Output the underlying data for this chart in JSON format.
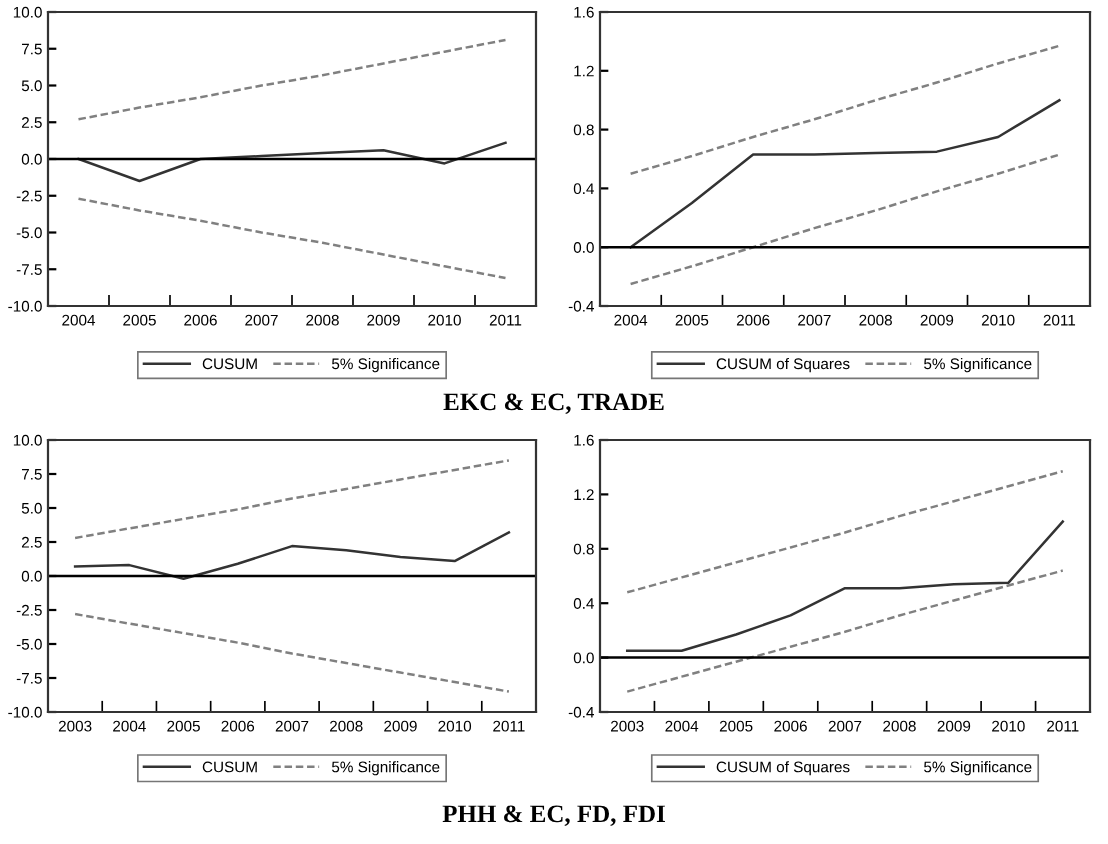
{
  "chart_data": [
    {
      "type": "line",
      "categories": [
        "2004",
        "2005",
        "2006",
        "2007",
        "2008",
        "2009",
        "2010",
        "2011"
      ],
      "ylim": [
        -10,
        10
      ],
      "yticks": [
        {
          "value": -10,
          "label": "-10.0"
        },
        {
          "value": -7.5,
          "label": "-7.5"
        },
        {
          "value": -5,
          "label": "-5.0"
        },
        {
          "value": -2.5,
          "label": "-2.5"
        },
        {
          "value": 0,
          "label": "0.0"
        },
        {
          "value": 2.5,
          "label": "2.5"
        },
        {
          "value": 5,
          "label": "5.0"
        },
        {
          "value": 7.5,
          "label": "7.5"
        },
        {
          "value": 10,
          "label": "10.0"
        }
      ],
      "legend": "bottom",
      "grid": false,
      "marker": "none",
      "ref_lines": [
        {
          "axis": "y",
          "value": 0,
          "color": "#000000",
          "line_style": "solid"
        }
      ],
      "annotations": [
        "EKC & EC, TRADE"
      ],
      "series": [
        {
          "name": "CUSUM",
          "color": "#333333",
          "line_style": "solid",
          "values": [
            0,
            -1.5,
            0,
            0.2,
            0.4,
            0.6,
            -0.3,
            1.1
          ]
        },
        {
          "name": "5% Significance",
          "color": "#808080",
          "line_style": "dashed",
          "values": [
            2.7,
            3.5,
            4.2,
            5.0,
            5.7,
            6.5,
            7.3,
            8.1
          ]
        },
        {
          "color": "#808080",
          "line_style": "dashed",
          "values": [
            -2.7,
            -3.5,
            -4.2,
            -5.0,
            -5.7,
            -6.5,
            -7.3,
            -8.1
          ]
        }
      ]
    },
    {
      "type": "line",
      "categories": [
        "2004",
        "2005",
        "2006",
        "2007",
        "2008",
        "2009",
        "2010",
        "2011"
      ],
      "ylim": [
        -0.4,
        1.6
      ],
      "yticks": [
        {
          "value": -0.4,
          "label": "-0.4"
        },
        {
          "value": 0,
          "label": "0.0"
        },
        {
          "value": 0.4,
          "label": "0.4"
        },
        {
          "value": 0.8,
          "label": "0.8"
        },
        {
          "value": 1.2,
          "label": "1.2"
        },
        {
          "value": 1.6,
          "label": "1.6"
        }
      ],
      "legend": "bottom",
      "grid": false,
      "marker": "none",
      "ref_lines": [
        {
          "axis": "y",
          "value": 0,
          "color": "#000000",
          "line_style": "solid"
        }
      ],
      "series": [
        {
          "name": "CUSUM of Squares",
          "color": "#333333",
          "line_style": "solid",
          "values": [
            0,
            0.3,
            0.63,
            0.63,
            0.64,
            0.65,
            0.75,
            1.0
          ]
        },
        {
          "name": "5% Significance",
          "color": "#808080",
          "line_style": "dashed",
          "values": [
            0.5,
            0.62,
            0.75,
            0.87,
            1.0,
            1.12,
            1.25,
            1.37
          ]
        },
        {
          "color": "#808080",
          "line_style": "dashed",
          "values": [
            -0.25,
            -0.13,
            0.0,
            0.13,
            0.25,
            0.38,
            0.5,
            0.63
          ]
        }
      ]
    },
    {
      "type": "line",
      "categories": [
        "2003",
        "2004",
        "2005",
        "2006",
        "2007",
        "2008",
        "2009",
        "2010",
        "2011"
      ],
      "ylim": [
        -10,
        10
      ],
      "yticks": [
        {
          "value": -10,
          "label": "-10.0"
        },
        {
          "value": -7.5,
          "label": "-7.5"
        },
        {
          "value": -5,
          "label": "-5.0"
        },
        {
          "value": -2.5,
          "label": "-2.5"
        },
        {
          "value": 0,
          "label": "0.0"
        },
        {
          "value": 2.5,
          "label": "2.5"
        },
        {
          "value": 5,
          "label": "5.0"
        },
        {
          "value": 7.5,
          "label": "7.5"
        },
        {
          "value": 10,
          "label": "10.0"
        }
      ],
      "legend": "bottom",
      "grid": false,
      "marker": "none",
      "ref_lines": [
        {
          "axis": "y",
          "value": 0,
          "color": "#000000",
          "line_style": "solid"
        }
      ],
      "annotations": [
        "PHH & EC, FD, FDI"
      ],
      "series": [
        {
          "name": "CUSUM",
          "color": "#333333",
          "line_style": "solid",
          "values": [
            0.7,
            0.8,
            -0.2,
            0.9,
            2.2,
            1.9,
            1.4,
            1.1,
            3.2
          ]
        },
        {
          "name": "5% Significance",
          "color": "#808080",
          "line_style": "dashed",
          "values": [
            2.8,
            3.5,
            4.2,
            4.9,
            5.7,
            6.4,
            7.1,
            7.8,
            8.5
          ]
        },
        {
          "color": "#808080",
          "line_style": "dashed",
          "values": [
            -2.8,
            -3.5,
            -4.2,
            -4.9,
            -5.7,
            -6.4,
            -7.1,
            -7.8,
            -8.5
          ]
        }
      ]
    },
    {
      "type": "line",
      "categories": [
        "2003",
        "2004",
        "2005",
        "2006",
        "2007",
        "2008",
        "2009",
        "2010",
        "2011"
      ],
      "ylim": [
        -0.4,
        1.6
      ],
      "yticks": [
        {
          "value": -0.4,
          "label": "-0.4"
        },
        {
          "value": 0,
          "label": "0.0"
        },
        {
          "value": 0.4,
          "label": "0.4"
        },
        {
          "value": 0.8,
          "label": "0.8"
        },
        {
          "value": 1.2,
          "label": "1.2"
        },
        {
          "value": 1.6,
          "label": "1.6"
        }
      ],
      "legend": "bottom",
      "grid": false,
      "marker": "none",
      "ref_lines": [
        {
          "axis": "y",
          "value": 0,
          "color": "#000000",
          "line_style": "solid"
        }
      ],
      "series": [
        {
          "name": "CUSUM of Squares",
          "color": "#333333",
          "line_style": "solid",
          "values": [
            0.05,
            0.05,
            0.17,
            0.31,
            0.51,
            0.51,
            0.54,
            0.55,
            1.0
          ]
        },
        {
          "name": "5% Significance",
          "color": "#808080",
          "line_style": "dashed",
          "values": [
            0.48,
            0.59,
            0.7,
            0.81,
            0.92,
            1.04,
            1.15,
            1.26,
            1.37
          ]
        },
        {
          "color": "#808080",
          "line_style": "dashed",
          "values": [
            -0.25,
            -0.14,
            -0.03,
            0.08,
            0.19,
            0.31,
            0.42,
            0.53,
            0.64
          ]
        }
      ]
    }
  ]
}
